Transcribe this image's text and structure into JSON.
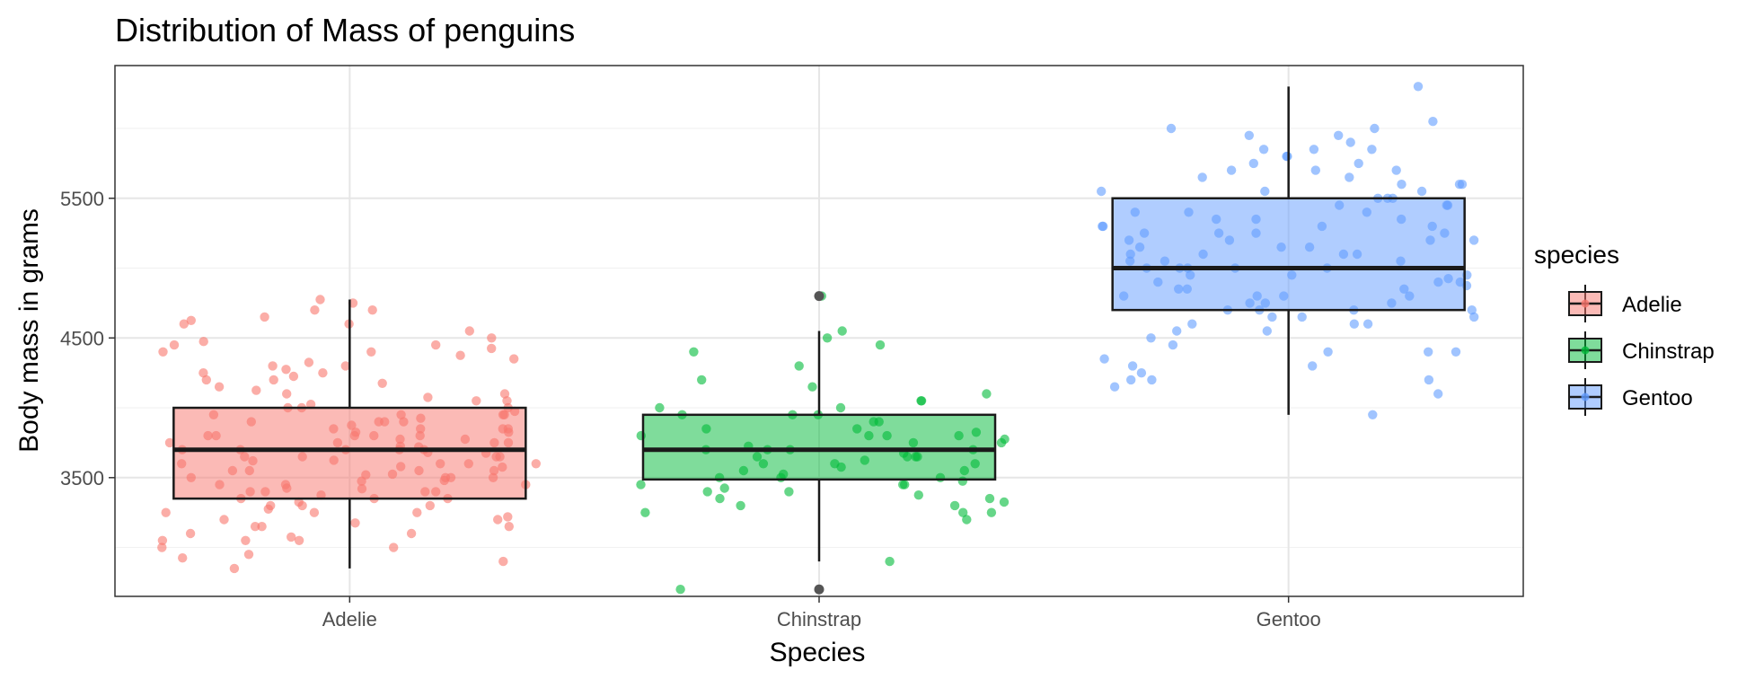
{
  "chart_data": {
    "type": "boxplot",
    "title": "Distribution of Mass of penguins",
    "xlabel": "Species",
    "ylabel": "Body mass in grams",
    "categories": [
      "Adelie",
      "Chinstrap",
      "Gentoo"
    ],
    "ylim": [
      2650,
      6450
    ],
    "yticks": [
      3500,
      4500,
      5500
    ],
    "grid": true,
    "legend": {
      "title": "species",
      "position": "right",
      "entries": [
        "Adelie",
        "Chinstrap",
        "Gentoo"
      ]
    },
    "colors": {
      "Adelie": "#F8766D",
      "Chinstrap": "#00BA38",
      "Gentoo": "#619CFF",
      "outlier": "#555555",
      "box_stroke": "#1a1a1a"
    },
    "series": [
      {
        "name": "Adelie",
        "min": 2850,
        "q1": 3350,
        "median": 3700,
        "q3": 4000,
        "max": 4775,
        "outliers": [],
        "points": [
          3000,
          3220,
          3300,
          3350,
          3400,
          3420,
          3450,
          3480,
          3500,
          3520,
          3550,
          3580,
          3600,
          3620,
          3650,
          3680,
          3700,
          3700,
          3720,
          3750,
          3750,
          3775,
          3800,
          3800,
          3825,
          3850,
          3900,
          3900,
          3950,
          3950,
          4000,
          4000,
          4050,
          4100,
          4150,
          4200,
          4250,
          4300,
          4350,
          4400,
          4450,
          4500,
          4600,
          4650,
          4700,
          4750,
          4775,
          2850,
          2900,
          2925,
          3050,
          3075,
          3100,
          3150,
          3175,
          3200,
          3250,
          3275,
          3325,
          3375,
          3425,
          3475,
          3525,
          3550,
          3575,
          3625,
          3675,
          3725,
          3775,
          3825,
          3875,
          3925,
          3975,
          4025,
          4075,
          4125,
          4175,
          4225,
          4275,
          4325,
          4375,
          4425,
          4475,
          4550,
          4625,
          4700,
          3450,
          3500,
          3600,
          3650,
          3700,
          3800,
          3850,
          3900,
          3950,
          4000,
          3550,
          3650,
          3750,
          3850,
          3350,
          3400,
          3250,
          3150,
          3100,
          3050,
          3000,
          2950,
          3600,
          3700,
          3800,
          3900,
          3500,
          3400,
          3300,
          3200,
          4200,
          4300,
          4400,
          4100,
          3950,
          3850,
          3750,
          3650,
          3550,
          3450,
          3350,
          3250,
          3150,
          3050,
          3700,
          3800,
          3600,
          3500,
          3400,
          3300,
          4600,
          4450,
          4250,
          4050
        ]
      },
      {
        "name": "Chinstrap",
        "min": 2900,
        "q1": 3487,
        "median": 3700,
        "q3": 3950,
        "max": 4550,
        "outliers": [
          2700,
          4800
        ],
        "points": [
          2700,
          2900,
          3200,
          3250,
          3250,
          3300,
          3325,
          3350,
          3375,
          3400,
          3425,
          3450,
          3475,
          3500,
          3500,
          3525,
          3550,
          3575,
          3600,
          3625,
          3650,
          3650,
          3675,
          3700,
          3700,
          3725,
          3750,
          3775,
          3800,
          3800,
          3825,
          3850,
          3900,
          3950,
          3950,
          4000,
          4050,
          4100,
          4150,
          4200,
          4300,
          4400,
          4450,
          4500,
          4550,
          4800,
          3650,
          3700,
          3750,
          3800,
          3550,
          3600,
          3400,
          3450,
          3300,
          3350,
          3900,
          3950,
          4000,
          4050,
          3500,
          3600,
          3700,
          3800,
          3250,
          3450,
          3650,
          3850
        ]
      },
      {
        "name": "Gentoo",
        "min": 3950,
        "q1": 4700,
        "median": 5000,
        "q3": 5500,
        "max": 6300,
        "outliers": [],
        "points": [
          3950,
          4100,
          4150,
          4200,
          4200,
          4250,
          4300,
          4350,
          4400,
          4400,
          4450,
          4500,
          4550,
          4600,
          4600,
          4650,
          4650,
          4700,
          4700,
          4750,
          4750,
          4800,
          4800,
          4850,
          4850,
          4875,
          4900,
          4925,
          4950,
          5000,
          5000,
          5000,
          5050,
          5050,
          5100,
          5100,
          5150,
          5150,
          5200,
          5200,
          5250,
          5250,
          5300,
          5300,
          5350,
          5400,
          5400,
          5450,
          5500,
          5500,
          5550,
          5550,
          5600,
          5600,
          5650,
          5700,
          5700,
          5750,
          5800,
          5800,
          5850,
          5850,
          5900,
          5950,
          6000,
          6050,
          6300,
          4700,
          4750,
          4800,
          4900,
          4950,
          5000,
          5100,
          5200,
          5300,
          5400,
          5500,
          5600,
          5700,
          4850,
          4950,
          5050,
          5150,
          5250,
          5350,
          5450,
          4600,
          4650,
          4550,
          4400,
          4300,
          4200,
          5650,
          5750,
          5850,
          5950,
          6000,
          5300,
          5000,
          4900,
          4800,
          4700,
          5100,
          5200,
          5250,
          5350,
          5450,
          5550
        ]
      }
    ]
  }
}
